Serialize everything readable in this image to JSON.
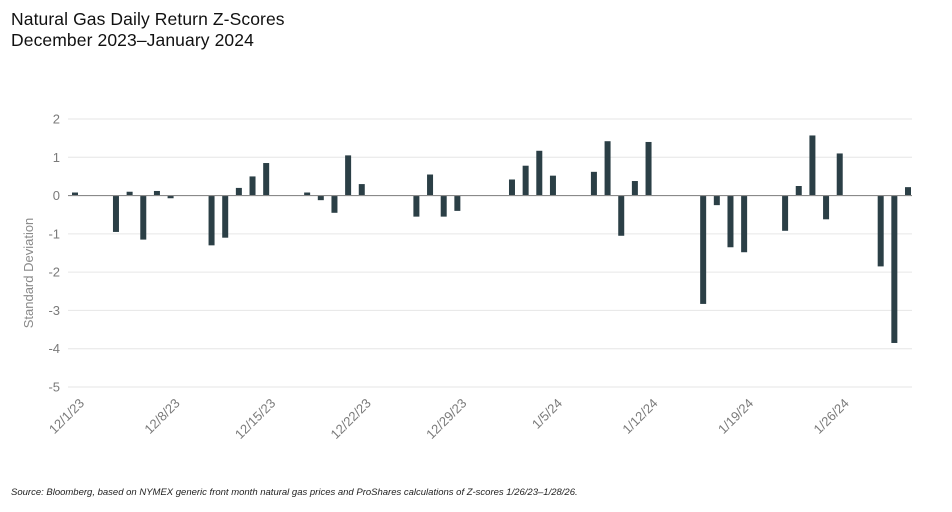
{
  "title": {
    "line1": "Natural Gas Daily Return Z-Scores",
    "line2": "December 2023–January 2024"
  },
  "source": "Source: Bloomberg, based on NYMEX generic front month natural gas prices and ProShares calculations of Z-scores 1/26/23–1/28/26.",
  "colors": {
    "bar": "#2b3f46",
    "grid": "#e6e6e6",
    "zero": "#8a8a8a",
    "tick": "#7a7a7a"
  },
  "chart_data": {
    "type": "bar",
    "title": "Natural Gas Daily Return Z-Scores",
    "subtitle": "December 2023–January 2024",
    "ylabel": "Standard Deviation",
    "xlabel": "",
    "ylim": [
      -5,
      2
    ],
    "yticks": [
      2,
      1,
      0,
      -1,
      -2,
      -3,
      -4,
      -5
    ],
    "grid": true,
    "legend": "none",
    "x_tick_labels": [
      "12/1/23",
      "12/8/23",
      "12/15/23",
      "12/22/23",
      "12/29/23",
      "1/5/24",
      "1/12/24",
      "1/19/24",
      "1/26/24"
    ],
    "series": [
      {
        "values": [
          {
            "date": "2023-12-01",
            "value": 0.08
          },
          {
            "date": "2023-12-04",
            "value": -0.95
          },
          {
            "date": "2023-12-05",
            "value": 0.1
          },
          {
            "date": "2023-12-06",
            "value": -1.15
          },
          {
            "date": "2023-12-07",
            "value": 0.12
          },
          {
            "date": "2023-12-08",
            "value": -0.07
          },
          {
            "date": "2023-12-11",
            "value": -1.3
          },
          {
            "date": "2023-12-12",
            "value": -1.1
          },
          {
            "date": "2023-12-13",
            "value": 0.2
          },
          {
            "date": "2023-12-14",
            "value": 0.5
          },
          {
            "date": "2023-12-15",
            "value": 0.85
          },
          {
            "date": "2023-12-18",
            "value": 0.08
          },
          {
            "date": "2023-12-19",
            "value": -0.12
          },
          {
            "date": "2023-12-20",
            "value": -0.45
          },
          {
            "date": "2023-12-21",
            "value": 1.05
          },
          {
            "date": "2023-12-22",
            "value": 0.3
          },
          {
            "date": "2023-12-26",
            "value": -0.55
          },
          {
            "date": "2023-12-27",
            "value": 0.55
          },
          {
            "date": "2023-12-28",
            "value": -0.55
          },
          {
            "date": "2023-12-29",
            "value": -0.4
          },
          {
            "date": "2024-01-02",
            "value": 0.42
          },
          {
            "date": "2024-01-03",
            "value": 0.78
          },
          {
            "date": "2024-01-04",
            "value": 1.17
          },
          {
            "date": "2024-01-05",
            "value": 0.52
          },
          {
            "date": "2024-01-08",
            "value": 0.62
          },
          {
            "date": "2024-01-09",
            "value": 1.42
          },
          {
            "date": "2024-01-10",
            "value": -1.05
          },
          {
            "date": "2024-01-11",
            "value": 0.38
          },
          {
            "date": "2024-01-12",
            "value": 1.4
          },
          {
            "date": "2024-01-16",
            "value": -2.83
          },
          {
            "date": "2024-01-17",
            "value": -0.25
          },
          {
            "date": "2024-01-18",
            "value": -1.35
          },
          {
            "date": "2024-01-19",
            "value": -1.48
          },
          {
            "date": "2024-01-22",
            "value": -0.92
          },
          {
            "date": "2024-01-23",
            "value": 0.25
          },
          {
            "date": "2024-01-24",
            "value": 1.57
          },
          {
            "date": "2024-01-25",
            "value": -0.62
          },
          {
            "date": "2024-01-26",
            "value": 1.1
          },
          {
            "date": "2024-01-29",
            "value": -1.85
          },
          {
            "date": "2024-01-30",
            "value": -3.85
          },
          {
            "date": "2024-01-31",
            "value": 0.22
          }
        ]
      }
    ]
  }
}
